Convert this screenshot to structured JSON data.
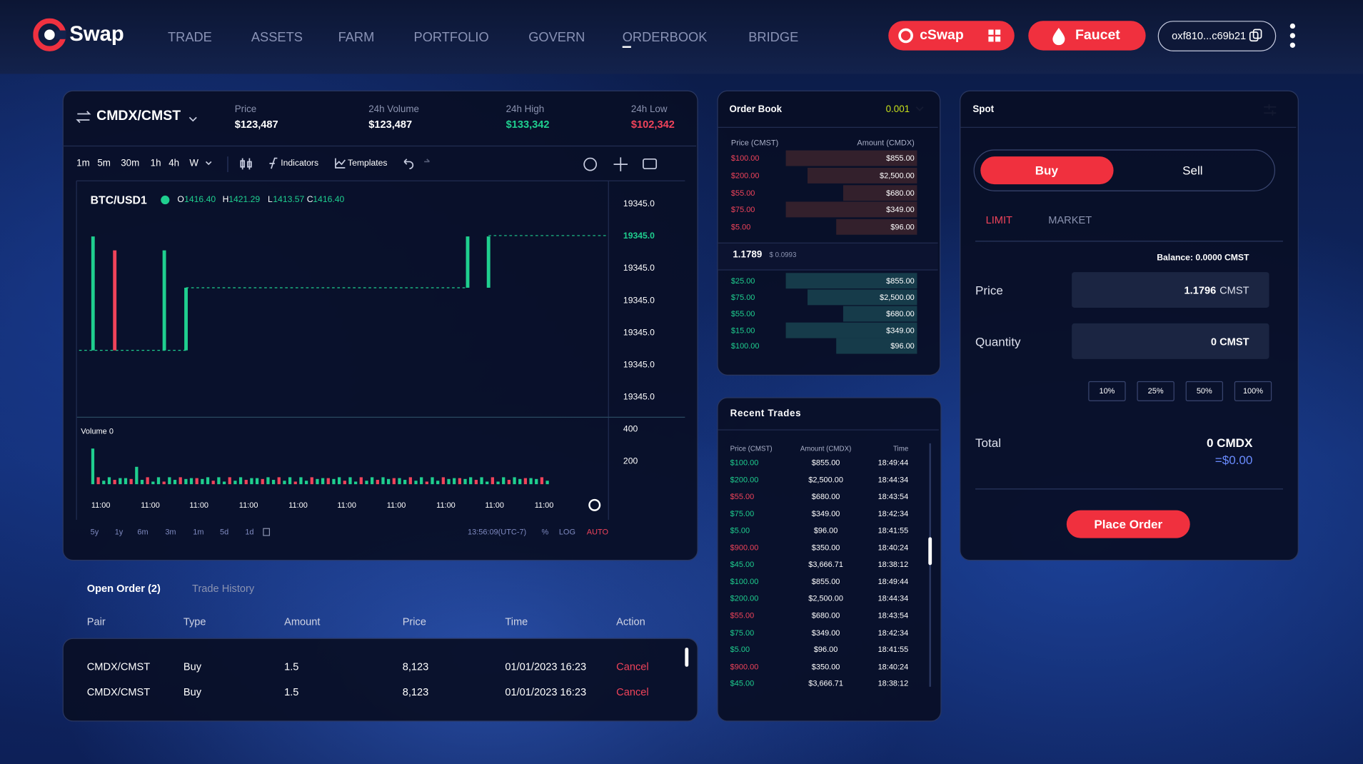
{
  "nav": {
    "logo": "Swap",
    "links": [
      "TRADE",
      "ASSETS",
      "FARM",
      "PORTFOLIO",
      "GOVERN",
      "ORDERBOOK",
      "BRIDGE"
    ],
    "cswap": "cSwap",
    "faucet": "Faucet",
    "wallet": "oxf810...c69b21"
  },
  "market": {
    "pair": "CMDX/CMST",
    "stats": [
      {
        "label": "Price",
        "value": "$123,487"
      },
      {
        "label": "24h Volume",
        "value": "$123,487"
      },
      {
        "label": "24h High",
        "value": "$133,342"
      },
      {
        "label": "24h Low",
        "value": "$102,342"
      }
    ]
  },
  "toolbar": {
    "intervals": [
      "1m",
      "5m",
      "30m",
      "1h",
      "4h",
      "W"
    ],
    "indicators": "Indicators",
    "templates": "Templates"
  },
  "chart": {
    "symbol": "BTC/USD1",
    "ohlc": [
      {
        "k": "O",
        "v": "1416.40"
      },
      {
        "k": "H",
        "v": "1421.29"
      },
      {
        "k": "L",
        "v": "1413.57"
      },
      {
        "k": "C",
        "v": "1416.40"
      }
    ],
    "price_labels": [
      "19345.0",
      "19345.0",
      "19345.0",
      "19345.0",
      "19345.0",
      "19345.0",
      "19345.0"
    ],
    "volume_label": "Volume 0",
    "volume_ticks": [
      "400",
      "200"
    ],
    "times": [
      "11:00",
      "11:00",
      "11:00",
      "11:00",
      "11:00",
      "11:00",
      "11:00",
      "11:00",
      "11:00",
      "11:00"
    ],
    "ranges": [
      "5y",
      "1y",
      "6m",
      "3m",
      "1m",
      "5d",
      "1d"
    ],
    "clock": "13:56:09(UTC-7)",
    "options": [
      "%",
      "LOG",
      "AUTO"
    ]
  },
  "orders": {
    "tabs": [
      "Open Order (2)",
      "Trade History"
    ],
    "columns": [
      "Pair",
      "Type",
      "Amount",
      "Price",
      "Time",
      "Action"
    ],
    "rows": [
      [
        "CMDX/CMST",
        "Buy",
        "1.5",
        "8,123",
        "01/01/2023 16:23",
        "Cancel"
      ],
      [
        "CMDX/CMST",
        "Buy",
        "1.5",
        "8,123",
        "01/01/2023 16:23",
        "Cancel"
      ]
    ]
  },
  "orderbook": {
    "title": "Order Book",
    "precision": "0.001",
    "columns": [
      "Price (CMST)",
      "Amount (CMDX)"
    ],
    "asks": [
      [
        "$100.00",
        "$855.00"
      ],
      [
        "$200.00",
        "$2,500.00"
      ],
      [
        "$55.00",
        "$680.00"
      ],
      [
        "$75.00",
        "$349.00"
      ],
      [
        "$5.00",
        "$96.00"
      ]
    ],
    "spread": "1.1789",
    "spread_usd": "$ 0.0993",
    "bids": [
      [
        "$25.00",
        "$855.00"
      ],
      [
        "$75.00",
        "$2,500.00"
      ],
      [
        "$55.00",
        "$680.00"
      ],
      [
        "$15.00",
        "$349.00"
      ],
      [
        "$100.00",
        "$96.00"
      ]
    ]
  },
  "trades": {
    "title": "Recent Trades",
    "columns": [
      "Price (CMST)",
      "Amount (CMDX)",
      "Time"
    ],
    "rows": [
      {
        "price": "$100.00",
        "amount": "$855.00",
        "time": "18:49:44",
        "side": "buy"
      },
      {
        "price": "$200.00",
        "amount": "$2,500.00",
        "time": "18:44:34",
        "side": "buy"
      },
      {
        "price": "$55.00",
        "amount": "$680.00",
        "time": "18:43:54",
        "side": "sell"
      },
      {
        "price": "$75.00",
        "amount": "$349.00",
        "time": "18:42:34",
        "side": "buy"
      },
      {
        "price": "$5.00",
        "amount": "$96.00",
        "time": "18:41:55",
        "side": "buy"
      },
      {
        "price": "$900.00",
        "amount": "$350.00",
        "time": "18:40:24",
        "side": "sell"
      },
      {
        "price": "$45.00",
        "amount": "$3,666.71",
        "time": "18:38:12",
        "side": "buy"
      },
      {
        "price": "$100.00",
        "amount": "$855.00",
        "time": "18:49:44",
        "side": "buy"
      },
      {
        "price": "$200.00",
        "amount": "$2,500.00",
        "time": "18:44:34",
        "side": "buy"
      },
      {
        "price": "$55.00",
        "amount": "$680.00",
        "time": "18:43:54",
        "side": "sell"
      },
      {
        "price": "$75.00",
        "amount": "$349.00",
        "time": "18:42:34",
        "side": "buy"
      },
      {
        "price": "$5.00",
        "amount": "$96.00",
        "time": "18:41:55",
        "side": "buy"
      },
      {
        "price": "$900.00",
        "amount": "$350.00",
        "time": "18:40:24",
        "side": "sell"
      },
      {
        "price": "$45.00",
        "amount": "$3,666.71",
        "time": "18:38:12",
        "side": "buy"
      }
    ]
  },
  "spot": {
    "title": "Spot",
    "sides": [
      "Buy",
      "Sell"
    ],
    "order_types": [
      "LIMIT",
      "MARKET"
    ],
    "balance": "Balance: 0.0000 CMST",
    "price_label": "Price",
    "price_value": "1.1796",
    "price_unit": "CMST",
    "quantity_label": "Quantity",
    "quantity_value": "0 CMST",
    "percents": [
      "10%",
      "25%",
      "50%",
      "100%"
    ],
    "total_label": "Total",
    "total_value": "0 CMDX",
    "total_usd": "=$0.00",
    "submit": "Place Order"
  }
}
